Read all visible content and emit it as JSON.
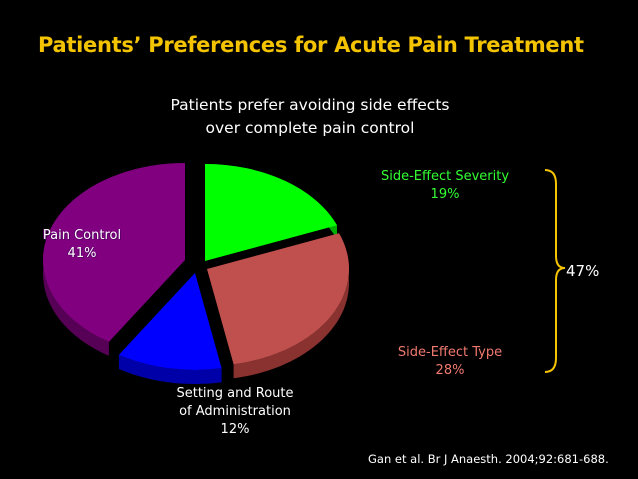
{
  "slide": {
    "title": "Patients’ Preferences for Acute Pain Treatment",
    "subtitle_line1": "Patients prefer avoiding side effects",
    "subtitle_line2": "over complete pain control",
    "brace_label": "47%",
    "citation": "Gan et al. Br J Anaesth. 2004;92:681-688."
  },
  "chart_data": {
    "type": "pie",
    "style": "3d-exploded",
    "slices": [
      {
        "label_lines": [
          "Side-Effect Severity",
          "19%"
        ],
        "value": 19,
        "color": "#00ff00",
        "side_color": "#00b000"
      },
      {
        "label_lines": [
          "Side-Effect Type",
          "28%"
        ],
        "value": 28,
        "color": "#c0504d",
        "side_color": "#8a3230"
      },
      {
        "label_lines": [
          "Setting and Route",
          "of Administration",
          "12%"
        ],
        "value": 12,
        "color": "#0000ff",
        "side_color": "#0000a8"
      },
      {
        "label_lines": [
          "Pain Control",
          "41%"
        ],
        "value": 41,
        "color": "#800080",
        "side_color": "#560056"
      }
    ],
    "grouped_annotation": {
      "slices": [
        "Side-Effect Severity",
        "Side-Effect Type"
      ],
      "label": "47%"
    }
  }
}
